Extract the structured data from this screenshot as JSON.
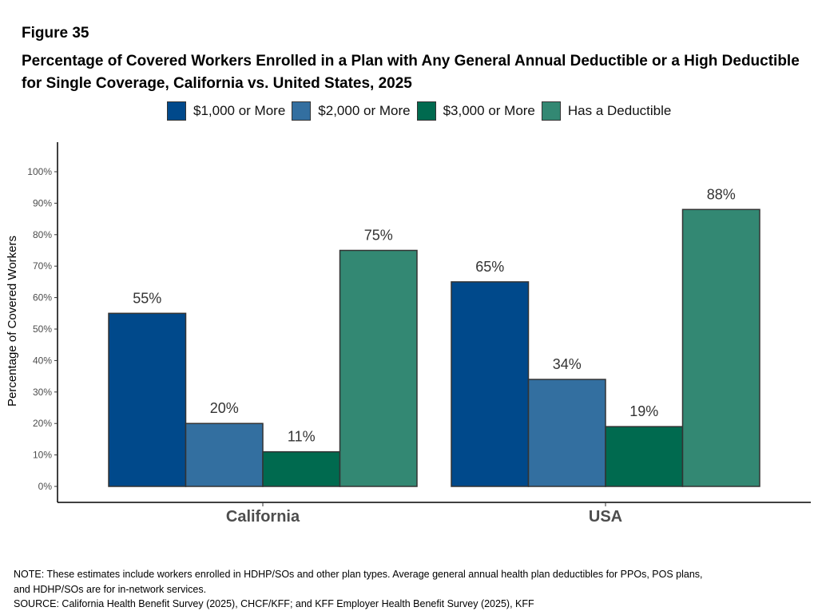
{
  "figure_label": "Figure 35",
  "chart_data": {
    "type": "bar",
    "title": "Percentage of Covered Workers Enrolled in a Plan with Any General Annual Deductible or a High Deductible for Single Coverage, California vs. United States, 2025",
    "categories": [
      "California",
      "USA"
    ],
    "series": [
      {
        "name": "$1,000 or More",
        "color": "#00498b",
        "values": [
          55,
          65
        ],
        "labels": [
          "55%",
          "65%"
        ]
      },
      {
        "name": "$2,000 or More",
        "color": "#336fa0",
        "values": [
          20,
          34
        ],
        "labels": [
          "20%",
          "34%"
        ]
      },
      {
        "name": "$3,000 or More",
        "color": "#006a4f",
        "values": [
          11,
          19
        ],
        "labels": [
          "11%",
          "19%"
        ]
      },
      {
        "name": "Has a Deductible",
        "color": "#338873",
        "values": [
          75,
          88
        ],
        "labels": [
          "75%",
          "88%"
        ]
      }
    ],
    "xlabel": "",
    "ylabel": "Percentage of Covered Workers",
    "ylim": [
      0,
      100
    ],
    "yticks": [
      "0%",
      "10%",
      "20%",
      "30%",
      "40%",
      "50%",
      "60%",
      "70%",
      "80%",
      "90%",
      "100%"
    ],
    "grid": false,
    "legend_position": "top"
  },
  "notes": {
    "note1": "NOTE: These estimates include workers enrolled in HDHP/SOs and other plan types. Average general annual health plan deductibles for PPOs, POS plans,",
    "note2": "and HDHP/SOs are for in-network services.",
    "source": "SOURCE: California Health Benefit Survey (2025), CHCF/KFF; and KFF Employer Health Benefit Survey (2025), KFF"
  }
}
